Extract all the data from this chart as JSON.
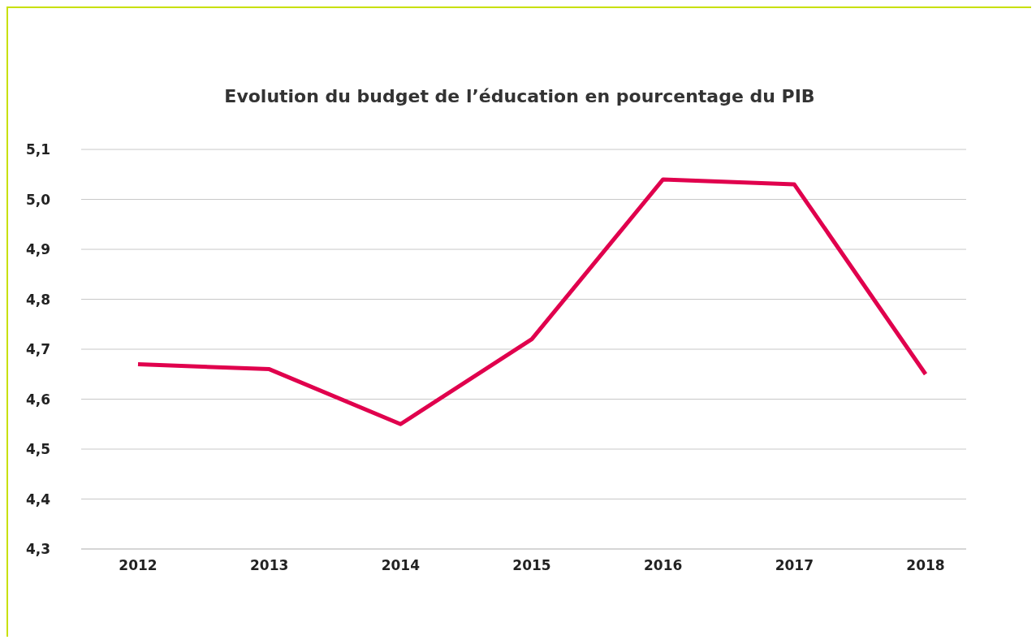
{
  "chart_data": {
    "type": "line",
    "title": "Evolution du budget de l’éducation en pourcentage du PIB",
    "categories": [
      "2012",
      "2013",
      "2014",
      "2015",
      "2016",
      "2017",
      "2018"
    ],
    "series": [
      {
        "color": "#e0004d",
        "values": [
          4.67,
          4.66,
          4.55,
          4.72,
          5.04,
          5.03,
          4.65
        ]
      }
    ],
    "ylim": [
      4.3,
      5.1
    ],
    "yticks": [
      {
        "value": 4.3,
        "label": "4,3"
      },
      {
        "value": 4.4,
        "label": "4,4"
      },
      {
        "value": 4.5,
        "label": "4,5"
      },
      {
        "value": 4.6,
        "label": "4,6"
      },
      {
        "value": 4.7,
        "label": "4,7"
      },
      {
        "value": 4.8,
        "label": "4,8"
      },
      {
        "value": 4.9,
        "label": "4,9"
      },
      {
        "value": 5.0,
        "label": "5,0"
      },
      {
        "value": 5.1,
        "label": "5,1"
      }
    ],
    "grid": "y",
    "marker": "none",
    "line_style": "solid",
    "legend": false
  }
}
